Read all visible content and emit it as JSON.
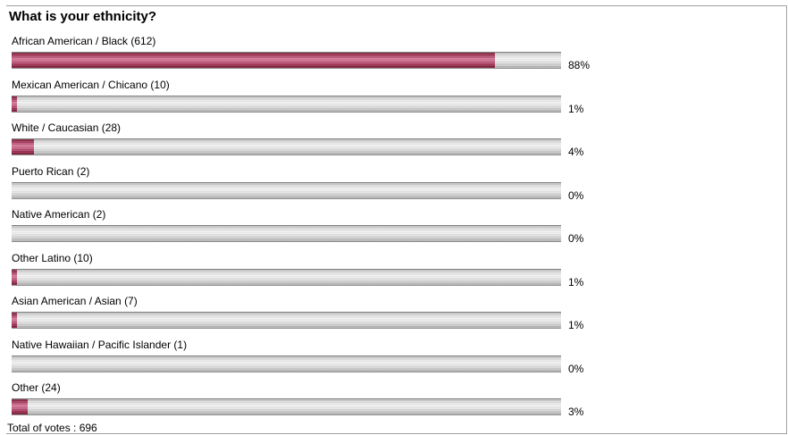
{
  "chart_data": {
    "type": "bar",
    "title": "What is your ethnicity?",
    "categories": [
      "African American / Black (612)",
      "Mexican American / Chicano (10)",
      "White / Caucasian (28)",
      "Puerto Rican (2)",
      "Native American (2)",
      "Other Latino (10)",
      "Asian American / Asian (7)",
      "Native Hawaiian / Pacific Islander (1)",
      "Other (24)"
    ],
    "values": [
      88,
      1,
      4,
      0,
      0,
      1,
      1,
      0,
      3
    ],
    "value_labels": [
      "88%",
      "1%",
      "4%",
      "0%",
      "0%",
      "1%",
      "1%",
      "0%",
      "3%"
    ],
    "xlim": [
      0,
      100
    ],
    "total_label": "Total of votes : 696"
  },
  "colors": {
    "fill": "#b1456a",
    "track": "#d6d6d6"
  }
}
